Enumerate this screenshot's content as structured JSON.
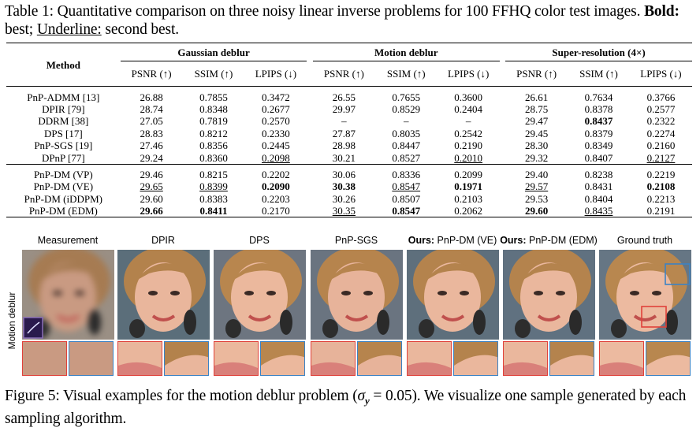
{
  "table_caption": {
    "prefix": "Table 1: Quantitative comparison on three noisy linear inverse problems for 100 FFHQ color test images. ",
    "bold_label": "Bold:",
    "bold_text": " best; ",
    "underline_label": "Underline:",
    "underline_text": " second best."
  },
  "table": {
    "method_header": "Method",
    "groups": [
      "Gaussian deblur",
      "Motion deblur",
      "Super-resolution (4×)"
    ],
    "metrics": [
      "PSNR (↑)",
      "SSIM (↑)",
      "LPIPS (↓)"
    ],
    "rows_a": [
      {
        "method": "PnP-ADMM [13]",
        "v": [
          "26.88",
          "0.7855",
          "0.3472",
          "26.55",
          "0.7655",
          "0.3600",
          "26.61",
          "0.7634",
          "0.3766"
        ]
      },
      {
        "method": "DPIR [79]",
        "v": [
          "28.74",
          "0.8348",
          "0.2677",
          "29.97",
          "0.8529",
          "0.2404",
          "28.75",
          "0.8378",
          "0.2577"
        ]
      },
      {
        "method": "DDRM [38]",
        "v": [
          "27.05",
          "0.7819",
          "0.2570",
          "–",
          "–",
          "–",
          "29.47",
          "0.8437",
          "0.2322"
        ]
      },
      {
        "method": "DPS [17]",
        "v": [
          "28.83",
          "0.8212",
          "0.2330",
          "27.87",
          "0.8035",
          "0.2542",
          "29.45",
          "0.8379",
          "0.2274"
        ]
      },
      {
        "method": "PnP-SGS [19]",
        "v": [
          "27.46",
          "0.8356",
          "0.2445",
          "28.98",
          "0.8447",
          "0.2190",
          "28.30",
          "0.8349",
          "0.2160"
        ]
      },
      {
        "method": "DPnP [77]",
        "v": [
          "29.24",
          "0.8360",
          "0.2098",
          "30.21",
          "0.8527",
          "0.2010",
          "29.32",
          "0.8407",
          "0.2127"
        ]
      }
    ],
    "rows_b": [
      {
        "method": "PnP-DM (VP)",
        "v": [
          "29.46",
          "0.8215",
          "0.2202",
          "30.06",
          "0.8336",
          "0.2099",
          "29.40",
          "0.8238",
          "0.2219"
        ]
      },
      {
        "method": "PnP-DM (VE)",
        "v": [
          "29.65",
          "0.8399",
          "0.2090",
          "30.38",
          "0.8547",
          "0.1971",
          "29.57",
          "0.8431",
          "0.2108"
        ]
      },
      {
        "method": "PnP-DM (iDDPM)",
        "v": [
          "29.60",
          "0.8383",
          "0.2203",
          "30.26",
          "0.8507",
          "0.2103",
          "29.53",
          "0.8404",
          "0.2213"
        ]
      },
      {
        "method": "PnP-DM (EDM)",
        "v": [
          "29.66",
          "0.8411",
          "0.2170",
          "30.35",
          "0.8547",
          "0.2062",
          "29.60",
          "0.8435",
          "0.2191"
        ]
      }
    ]
  },
  "figure": {
    "row_label": "Motion deblur",
    "columns": [
      {
        "label": "Measurement",
        "bold_prefix": ""
      },
      {
        "label": "DPIR",
        "bold_prefix": ""
      },
      {
        "label": "DPS",
        "bold_prefix": ""
      },
      {
        "label": "PnP-SGS",
        "bold_prefix": ""
      },
      {
        "label": " PnP-DM (VE)",
        "bold_prefix": "Ours:"
      },
      {
        "label": " PnP-DM (EDM)",
        "bold_prefix": "Ours:"
      },
      {
        "label": "Ground truth",
        "bold_prefix": ""
      }
    ]
  },
  "figure_caption": {
    "prefix": "Figure 5: Visual examples for the motion deblur problem (",
    "sigma": "σ",
    "sub": "y",
    "eq": " = 0.05). We visualize one sample generated by each sampling algorithm."
  },
  "colors": {
    "crop_red": "#e0413a",
    "crop_blue": "#3b82c4"
  }
}
